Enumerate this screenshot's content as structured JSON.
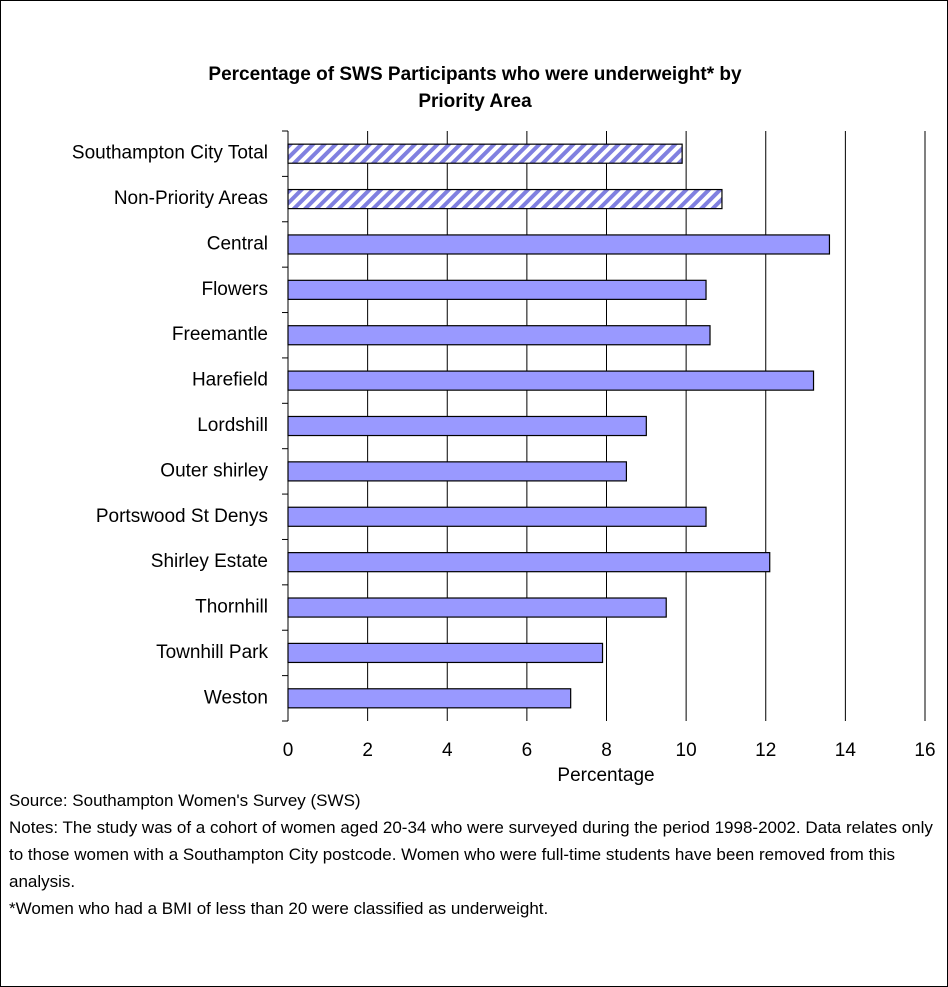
{
  "chart_data": {
    "type": "hbar",
    "title": [
      "Percentage of SWS Participants who were underweight* by",
      "Priority Area"
    ],
    "x_label": "Percentage",
    "categories": [
      "Southampton City Total",
      "Non-Priority Areas",
      "Central",
      "Flowers",
      "Freemantle",
      "Harefield",
      "Lordshill",
      "Outer shirley",
      "Portswood St Denys",
      "Shirley Estate",
      "Thornhill",
      "Townhill Park",
      "Weston"
    ],
    "values": [
      9.9,
      10.9,
      13.6,
      10.5,
      10.6,
      13.2,
      9.0,
      8.5,
      10.5,
      12.1,
      9.5,
      7.9,
      7.1
    ],
    "hatched": [
      true,
      true,
      false,
      false,
      false,
      false,
      false,
      false,
      false,
      false,
      false,
      false,
      false
    ],
    "color": "#9999ff",
    "xlim": [
      0,
      16
    ],
    "xticks": [
      0,
      2,
      4,
      6,
      8,
      10,
      12,
      14,
      16
    ],
    "grid": true
  },
  "notes": [
    "Source: Southampton Women's Survey (SWS)",
    "Notes: The study was of a cohort of women aged 20-34 who were surveyed during the period 1998-2002. Data relates only to those women with a Southampton City postcode. Women who were full-time students have been removed from this analysis.",
    "*Women who had a BMI of less than 20 were classified as underweight."
  ]
}
